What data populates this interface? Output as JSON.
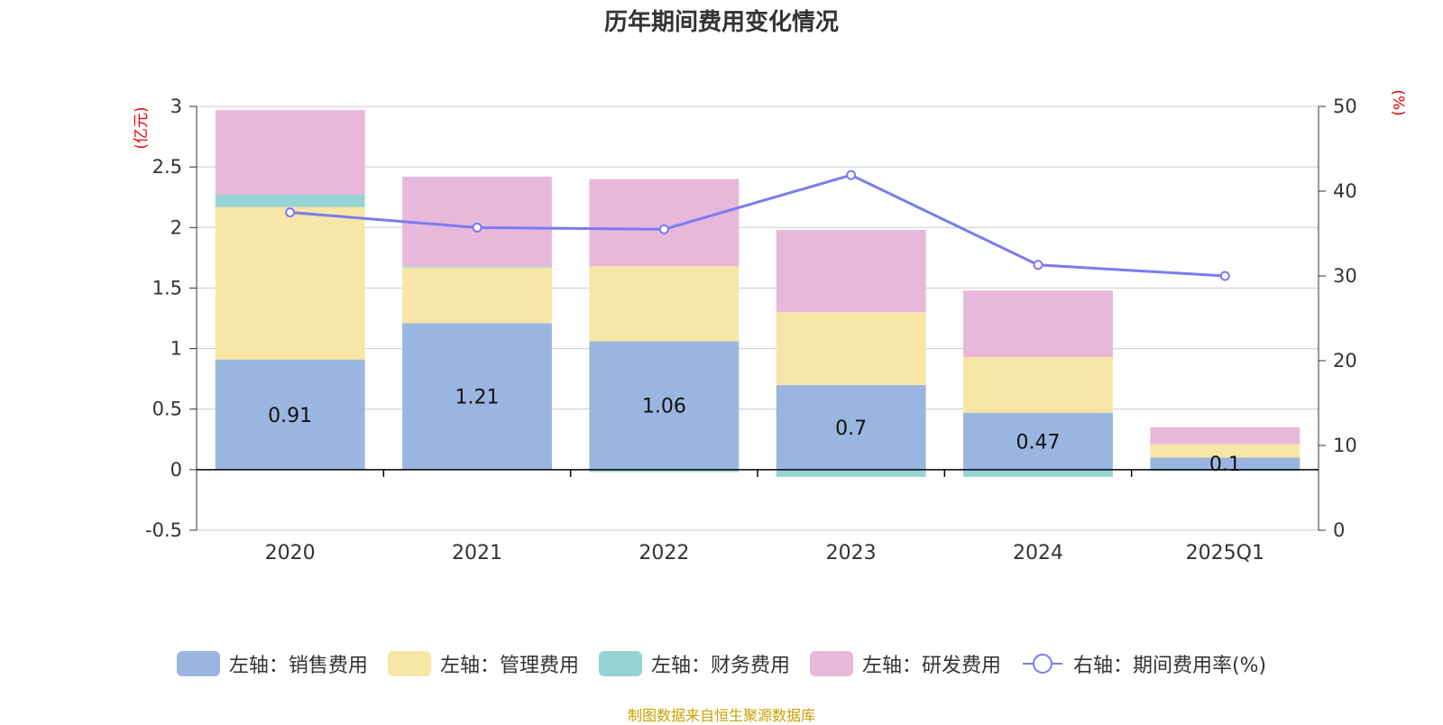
{
  "chart_data": {
    "type": "bar",
    "title": "历年期间费用变化情况",
    "categories": [
      "2020",
      "2021",
      "2022",
      "2023",
      "2024",
      "2025Q1"
    ],
    "left_axis": {
      "unit": "(亿元)",
      "ylim": [
        -0.5,
        3
      ],
      "ticks": [
        "3",
        "2.5",
        "2",
        "1.5",
        "1",
        "0.5",
        "0",
        "-0.5"
      ]
    },
    "right_axis": {
      "unit": "(%)",
      "ylim": [
        0,
        50
      ],
      "ticks": [
        "50",
        "40",
        "30",
        "20",
        "10",
        "0"
      ]
    },
    "series": [
      {
        "name": "左轴：销售费用",
        "type": "bar",
        "color": "#9ab6e0",
        "values": [
          0.91,
          1.21,
          1.06,
          0.7,
          0.47,
          0.1
        ],
        "labels": [
          "0.91",
          "1.21",
          "1.06",
          "0.7",
          "0.47",
          "0.1"
        ]
      },
      {
        "name": "左轴：管理费用",
        "type": "bar",
        "color": "#f7e6a6",
        "values": [
          1.26,
          0.46,
          0.62,
          0.6,
          0.46,
          0.11
        ]
      },
      {
        "name": "左轴：财务费用",
        "type": "bar",
        "color": "#96d4d4",
        "values": [
          0.1,
          0.01,
          -0.02,
          -0.06,
          -0.06,
          -0.01
        ]
      },
      {
        "name": "左轴：研发费用",
        "type": "bar",
        "color": "#e8b8da",
        "values": [
          0.7,
          0.74,
          0.72,
          0.68,
          0.55,
          0.14
        ]
      },
      {
        "name": "右轴：期间费用率(%)",
        "type": "line",
        "color": "#7b7bf0",
        "axis": "right",
        "values": [
          37.5,
          35.7,
          35.5,
          41.9,
          31.3,
          30.0
        ]
      }
    ],
    "grid": true,
    "legend_position": "bottom"
  },
  "footer": "制图数据来自恒生聚源数据库"
}
